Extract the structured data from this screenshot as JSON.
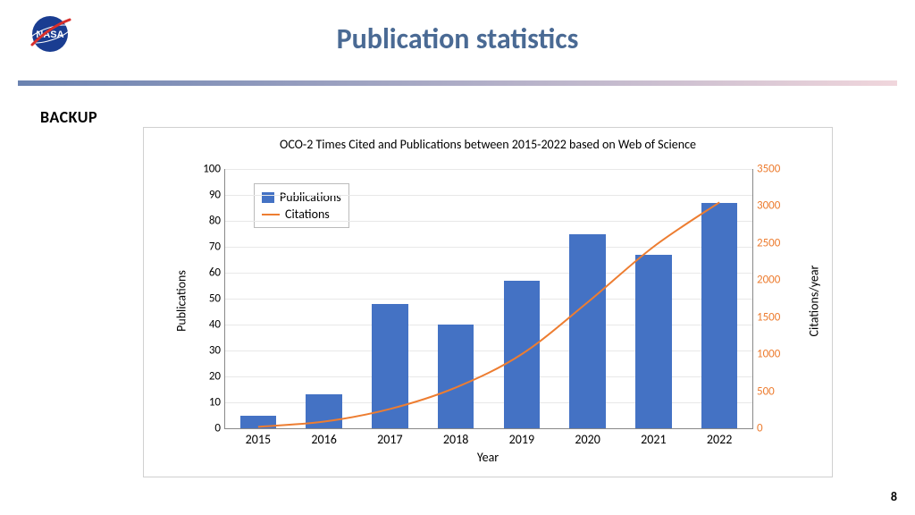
{
  "slide": {
    "title": "Publication statistics",
    "title_color": "#4a6a94",
    "title_fontsize": 32,
    "backup_label": "BACKUP",
    "backup_color": "#000000",
    "backup_fontsize": 18,
    "page_number": "8",
    "page_number_fontsize": 14,
    "divider": {
      "color_start": "#6a82b0",
      "color_end": "#f0d6dc"
    },
    "logo": {
      "circle_color": "#1a3d91",
      "text": "NASA",
      "text_color": "#ffffff",
      "swoosh_color": "#d82f2b",
      "orbit_color": "#ffffff"
    }
  },
  "chart": {
    "type": "bar+line dual-axis",
    "title": "OCO-2 Times Cited and Publications between 2015-2022 based on Web of Science",
    "title_fontsize": 14,
    "title_color": "#000000",
    "xaxis": {
      "label": "Year",
      "categories": [
        "2015",
        "2016",
        "2017",
        "2018",
        "2019",
        "2020",
        "2021",
        "2022"
      ],
      "fontsize": 14
    },
    "yaxis_left": {
      "label": "Publications",
      "min": 0,
      "max": 100,
      "tick_step": 10,
      "ticks": [
        0,
        10,
        20,
        30,
        40,
        50,
        60,
        70,
        80,
        90,
        100
      ],
      "color": "#000000",
      "fontsize": 14
    },
    "yaxis_right": {
      "label": "Citations/year",
      "min": 0,
      "max": 3500,
      "tick_step": 500,
      "ticks": [
        0,
        500,
        1000,
        1500,
        2000,
        2500,
        3000,
        3500
      ],
      "color": "#ed7d31",
      "fontsize": 14
    },
    "series": {
      "publications": {
        "type": "bar",
        "color": "#4472c4",
        "values": [
          5,
          13,
          48,
          40,
          57,
          75,
          67,
          87
        ],
        "bar_width_frac": 0.55
      },
      "citations": {
        "type": "line",
        "color": "#ed7d31",
        "line_width": 2,
        "values": [
          20,
          90,
          260,
          550,
          1000,
          1700,
          2450,
          3050
        ]
      }
    },
    "legend": {
      "items": [
        {
          "label": "Publications",
          "kind": "bar",
          "color": "#4472c4"
        },
        {
          "label": "Citations",
          "kind": "line",
          "color": "#ed7d31"
        }
      ],
      "fontsize": 14
    },
    "grid_color": "#e8e8e8",
    "plot_border_color": "#888888",
    "background_color": "#ffffff"
  }
}
